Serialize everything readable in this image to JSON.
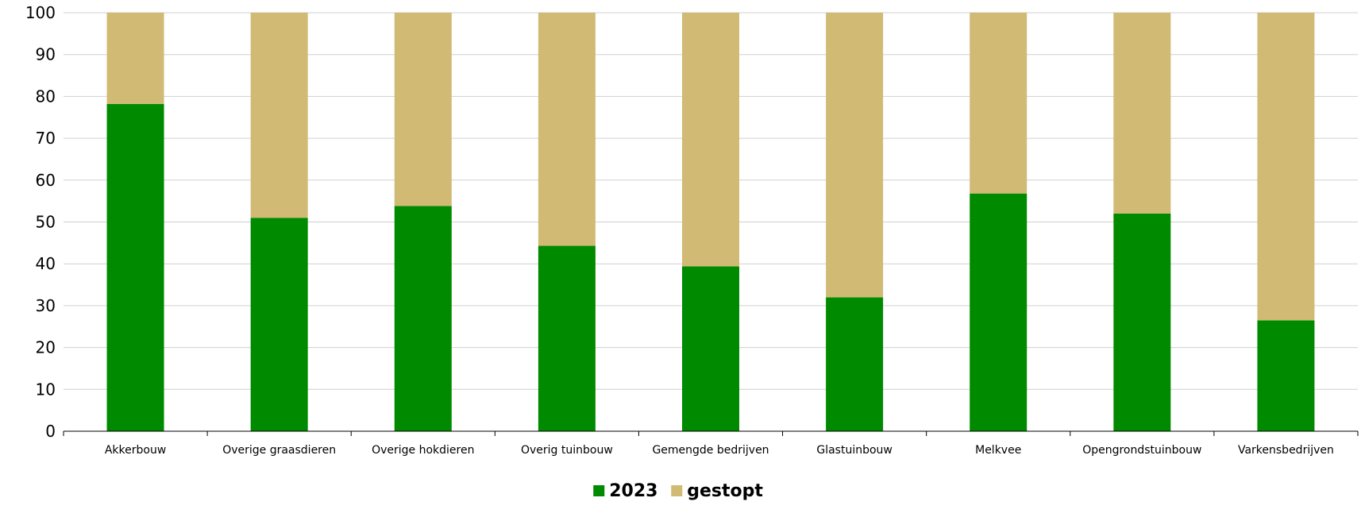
{
  "chart_data": {
    "type": "bar",
    "stacked": true,
    "categories": [
      "Akkerbouw",
      "Overige graasdieren",
      "Overige hokdieren",
      "Overig tuinbouw",
      "Gemengde bedrijven",
      "Glastuinbouw",
      "Melkvee",
      "Opengrondstuinbouw",
      "Varkensbedrijven"
    ],
    "series": [
      {
        "name": "2023",
        "color": "#008a00",
        "values": [
          78.2,
          51.0,
          53.8,
          44.3,
          39.4,
          32.0,
          56.8,
          52.0,
          26.5
        ]
      },
      {
        "name": "gestopt",
        "color": "#d0ba74",
        "values": [
          21.8,
          49.0,
          46.2,
          55.7,
          60.6,
          68.0,
          43.2,
          48.0,
          73.5
        ]
      }
    ],
    "yticks": [
      "0",
      "10",
      "20",
      "30",
      "40",
      "50",
      "60",
      "70",
      "80",
      "90",
      "100"
    ],
    "ylim": [
      0,
      100
    ],
    "grid": true,
    "legend_position": "bottom-center",
    "title": "",
    "xlabel": "",
    "ylabel": ""
  }
}
